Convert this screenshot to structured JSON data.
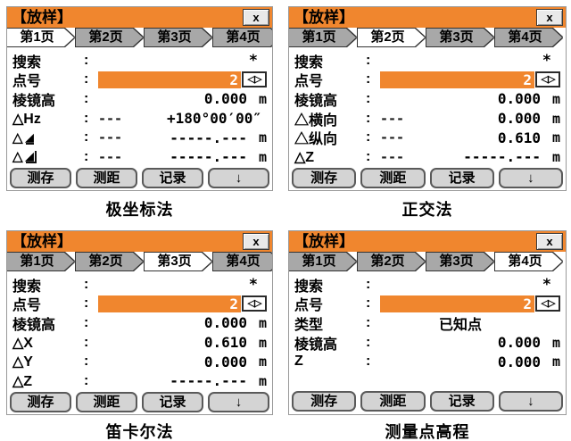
{
  "window": {
    "title": "【放样】",
    "close": "x"
  },
  "tabs": [
    "第1页",
    "第2页",
    "第3页",
    "第4页"
  ],
  "buttons": [
    "测存",
    "测距",
    "记录",
    "↓"
  ],
  "colon": ":",
  "icons": {
    "delta": "△",
    "ramp": "◢",
    "spin_left": "◁",
    "spin_right": "▷"
  },
  "colors": {
    "accent_orange": "#F0862E",
    "tab_inactive_gray": "#A8A8A8",
    "softkey_gray": "#D4D4D4"
  },
  "panels": [
    {
      "caption": "极坐标法",
      "active_tab": 0,
      "rows": [
        {
          "label": "搜索",
          "value": "*"
        },
        {
          "label": "点号",
          "value": "2"
        },
        {
          "label": "棱镜高",
          "value": "0.000",
          "unit": "m"
        },
        {
          "label": "△Hz",
          "mid": "---",
          "value": "+180°00′00″"
        },
        {
          "label": "△",
          "icon": "horizontal-distance",
          "mid": "---",
          "value": "-----.---",
          "unit": "m"
        },
        {
          "label": "△",
          "icon": "height-difference",
          "mid": "---",
          "value": "-----.---",
          "unit": "m"
        }
      ]
    },
    {
      "caption": "正交法",
      "active_tab": 1,
      "rows": [
        {
          "label": "搜索",
          "value": "*"
        },
        {
          "label": "点号",
          "value": "2"
        },
        {
          "label": "棱镜高",
          "value": "0.000",
          "unit": "m"
        },
        {
          "label": "△横向",
          "mid": "---",
          "value": "0.000",
          "unit": "m"
        },
        {
          "label": "△纵向",
          "mid": "---",
          "value": "0.610",
          "unit": "m"
        },
        {
          "label": "△Z",
          "mid": "---",
          "value": "-----.---",
          "unit": "m"
        }
      ]
    },
    {
      "caption": "笛卡尔法",
      "active_tab": 2,
      "rows": [
        {
          "label": "搜索",
          "value": "*"
        },
        {
          "label": "点号",
          "value": "2"
        },
        {
          "label": "棱镜高",
          "value": "0.000",
          "unit": "m"
        },
        {
          "label": "△X",
          "value": "0.610",
          "unit": "m"
        },
        {
          "label": "△Y",
          "value": "0.000",
          "unit": "m"
        },
        {
          "label": "△Z",
          "value": "-----.---",
          "unit": "m"
        }
      ]
    },
    {
      "caption": "测量点高程",
      "active_tab": 3,
      "rows": [
        {
          "label": "搜索",
          "value": "*"
        },
        {
          "label": "点号",
          "value": "2"
        },
        {
          "label": "类型",
          "value": "已知点"
        },
        {
          "label": "棱镜高",
          "value": "0.000",
          "unit": "m"
        },
        {
          "label": "Z",
          "value": "0.000",
          "unit": "m"
        }
      ]
    }
  ]
}
